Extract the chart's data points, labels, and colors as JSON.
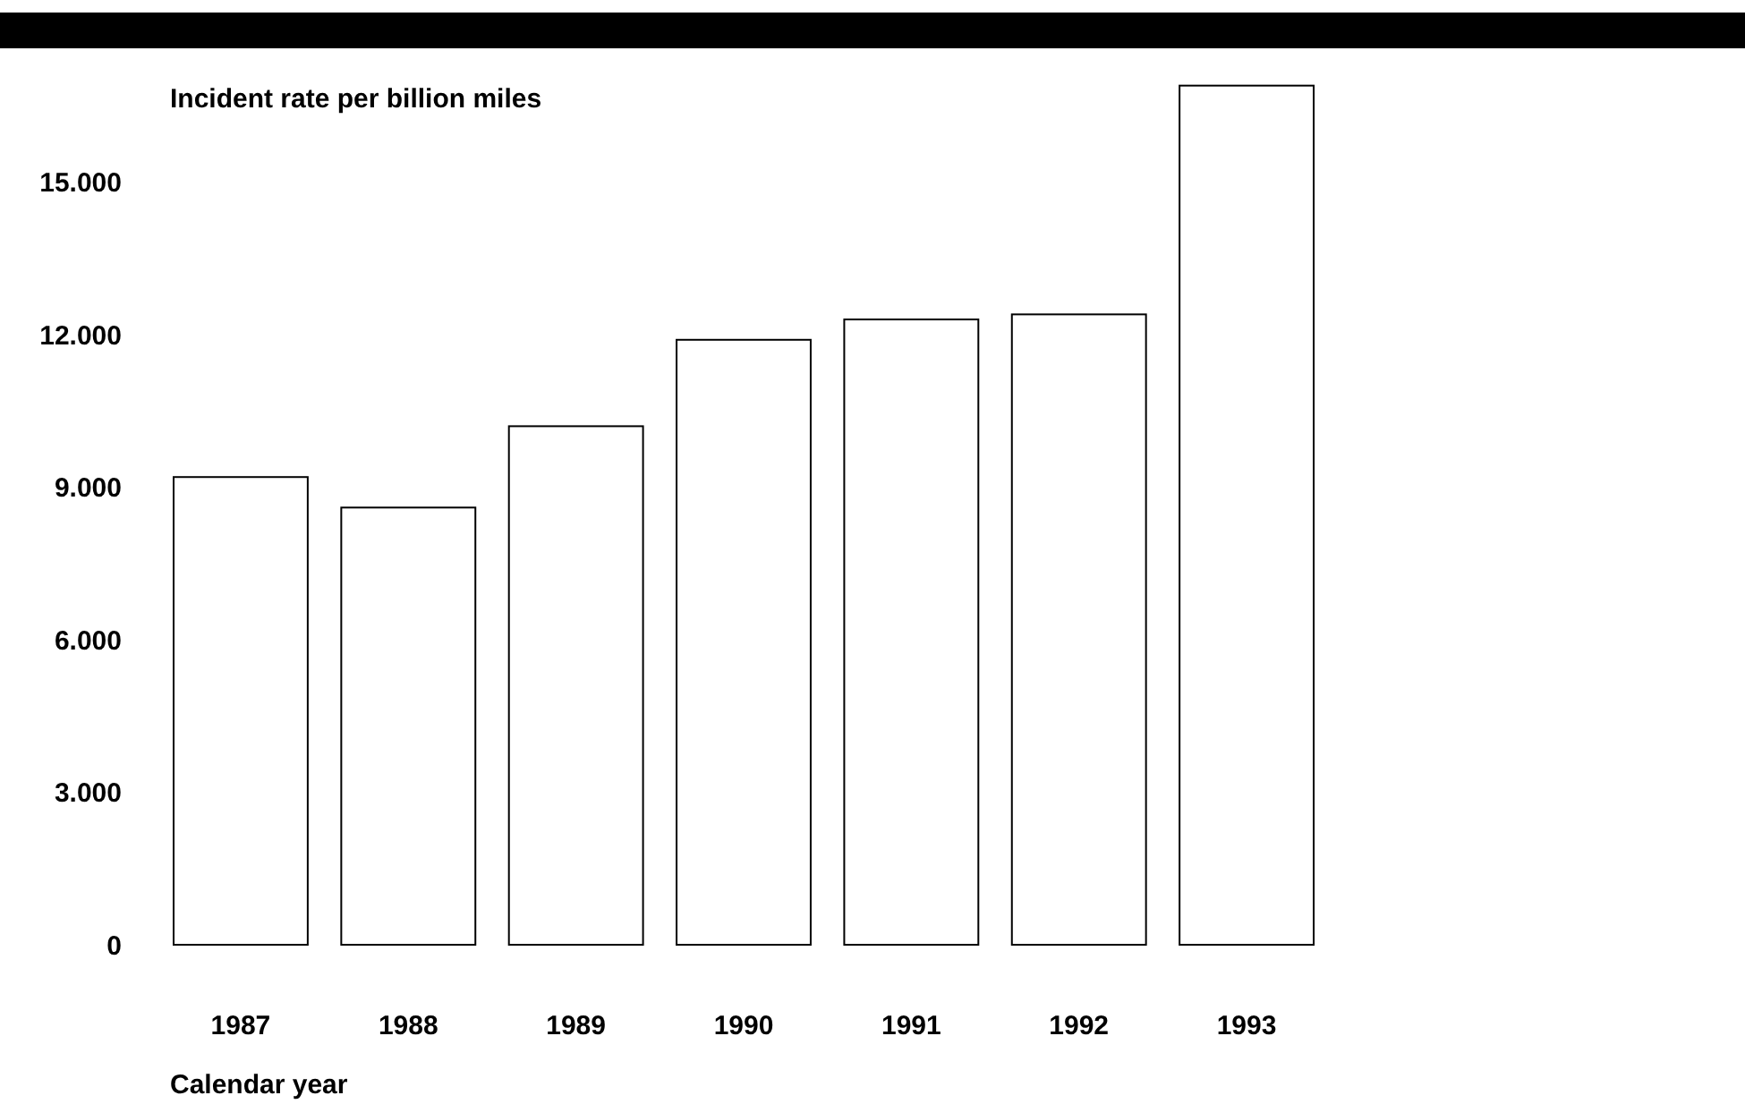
{
  "chart_data": {
    "type": "bar",
    "xlabel": "Calendar year",
    "ylabel": "Incident rate per billion miles",
    "categories": [
      "1987",
      "1988",
      "1989",
      "1990",
      "1991",
      "1992",
      "1993"
    ],
    "values": [
      9200,
      8600,
      10200,
      11900,
      12300,
      12400,
      16900
    ],
    "color": "#ffffff",
    "ylim": [
      0,
      17000
    ],
    "yticks": [
      0,
      {
        "value": 3000,
        "label": "3.000"
      },
      {
        "value": 6000,
        "label": "6.000"
      },
      {
        "value": 9000,
        "label": "9.000"
      },
      {
        "value": 12000,
        "label": "12.000"
      },
      {
        "value": 15000,
        "label": "15.000"
      }
    ],
    "grid": false
  }
}
